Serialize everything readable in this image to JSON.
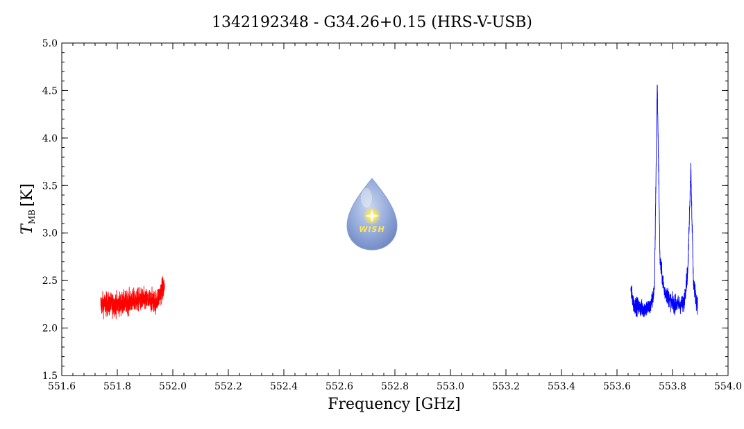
{
  "chart_data": {
    "type": "line",
    "title": "1342192348 - G34.26+0.15 (HRS-V-USB)",
    "xlabel": "Frequency [GHz]",
    "ylabel_main": "T",
    "ylabel_sub": "MB",
    "ylabel_unit": "[K]",
    "xlim": [
      551.6,
      554.0
    ],
    "ylim": [
      1.5,
      5.0
    ],
    "xticks": [
      "551.6",
      "551.8",
      "552.0",
      "552.2",
      "552.4",
      "552.6",
      "552.8",
      "553.0",
      "553.2",
      "553.4",
      "553.6",
      "553.8",
      "554.0"
    ],
    "yticks": [
      "1.5",
      "2.0",
      "2.5",
      "3.0",
      "3.5",
      "4.0",
      "4.5",
      "5.0"
    ],
    "grid": false,
    "series": [
      {
        "color": "#ff0000",
        "x_range": [
          551.74,
          551.97
        ],
        "profile": [
          [
            551.74,
            2.25
          ],
          [
            551.8,
            2.25
          ],
          [
            551.88,
            2.3
          ],
          [
            551.94,
            2.28
          ],
          [
            551.97,
            2.45
          ]
        ],
        "noise": 0.12
      },
      {
        "color": "#0000ff",
        "x_range": [
          553.65,
          553.89
        ],
        "profile": [
          [
            553.65,
            2.4
          ],
          [
            553.66,
            2.25
          ],
          [
            553.69,
            2.2
          ],
          [
            553.72,
            2.22
          ],
          [
            553.735,
            2.4
          ],
          [
            553.745,
            4.6
          ],
          [
            553.755,
            2.7
          ],
          [
            553.77,
            2.4
          ],
          [
            553.8,
            2.25
          ],
          [
            553.84,
            2.25
          ],
          [
            553.855,
            2.6
          ],
          [
            553.866,
            3.7
          ],
          [
            553.875,
            2.5
          ],
          [
            553.885,
            2.3
          ],
          [
            553.89,
            2.25
          ]
        ],
        "noise": 0.09
      }
    ]
  },
  "logo": {
    "text": "WISH",
    "icon": "water-drop-star-icon"
  }
}
